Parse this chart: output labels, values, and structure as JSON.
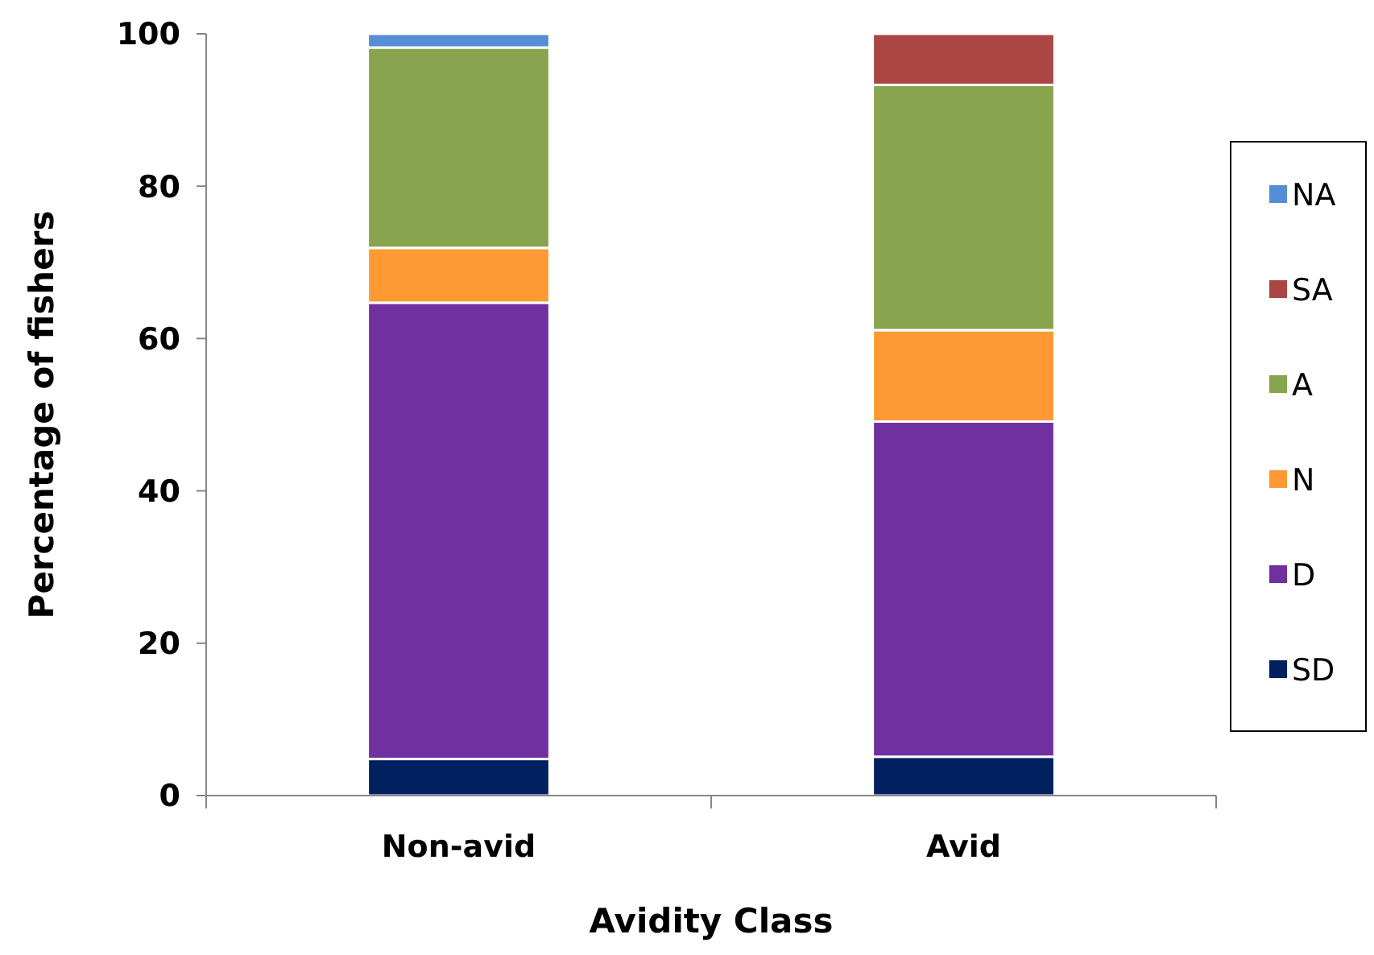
{
  "chart_data": {
    "type": "bar",
    "stacked": true,
    "xlabel": "Avidity Class",
    "ylabel": "Percentage of fishers",
    "categories": [
      "Non-avid",
      "Avid"
    ],
    "ylim": [
      0,
      100
    ],
    "yticks": [
      0,
      20,
      40,
      60,
      80,
      100
    ],
    "grid": false,
    "legend": "right",
    "series": [
      {
        "name": "SD",
        "color": "#002060",
        "values": [
          4.8,
          5.1
        ]
      },
      {
        "name": "D",
        "color": "#7030a0",
        "values": [
          59.9,
          44
        ]
      },
      {
        "name": "N",
        "color": "#ff9933",
        "values": [
          7.2,
          12
        ]
      },
      {
        "name": "A",
        "color": "#88a44e",
        "values": [
          26.3,
          32.2
        ]
      },
      {
        "name": "SA",
        "color": "#aa4643",
        "values": [
          0,
          6.7
        ]
      },
      {
        "name": "NA",
        "color": "#558ed5",
        "values": [
          1.8,
          0
        ]
      }
    ]
  }
}
